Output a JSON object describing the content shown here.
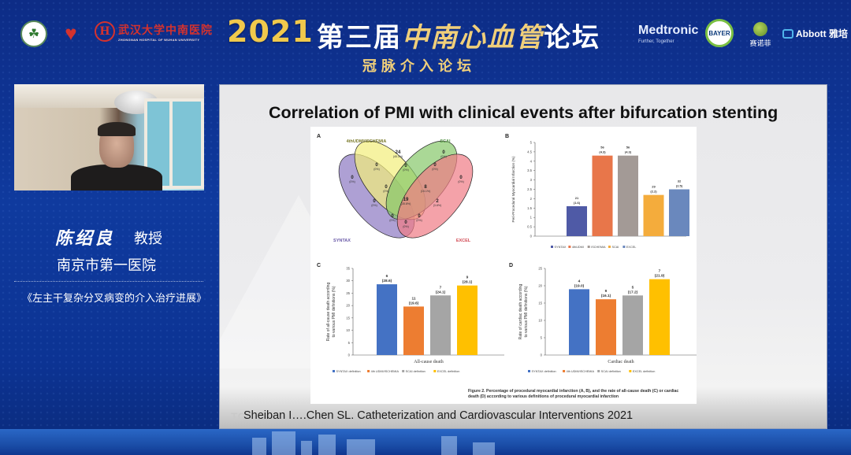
{
  "header": {
    "year": "2021",
    "title_prefix": "第三届",
    "title_calligraphy": "中南心血管",
    "title_suffix": "论坛",
    "subtitle": "冠脉介入论坛",
    "host_logos": [
      {
        "name": "wuhan-university-logo",
        "glyph": "☘"
      },
      {
        "name": "heart-center-logo",
        "glyph": "♥"
      },
      {
        "name": "zhongnan-hospital-logo",
        "glyph": "H",
        "text": "武汉大学中南医院",
        "subtext": "ZHONGNAN HOSPITAL OF WUHAN UNIVERSITY"
      }
    ],
    "sponsors": {
      "medtronic": "Medtronic",
      "medtronic_tagline": "Further, Together",
      "bayer": "BAYER",
      "sanofi": "赛诺菲",
      "abbott": "Abbott 雅培"
    }
  },
  "speaker": {
    "name": "陈绍良",
    "title": "教授",
    "hospital": "南京市第一医院",
    "talk_title": "《左主干复杂分叉病变的介入治疗进展》"
  },
  "slide": {
    "title": "Correlation of PMI with clinical events after bifurcation stenting",
    "citation": "Sheiban I….Chen SL. Catheterization and Cardiovascular Interventions 2021",
    "watermark": "TC",
    "caption": "Figure 2. Percentage of procedural myocardial infarction (A, B), and the rate of all-cause death (C) or cardiac death (D) according to various definitions of procedural myocardial infarction"
  },
  "chart_data": [
    {
      "panel": "A",
      "type": "venn",
      "sets": [
        {
          "name": "4thUDMI/ISCHEMIA",
          "color": "#f2ee7a"
        },
        {
          "name": "SCAI",
          "color": "#86c76a"
        },
        {
          "name": "SYNTAX",
          "color": "#8b78c2"
        },
        {
          "name": "EXCEL",
          "color": "#ef7b84"
        }
      ],
      "regions": [
        {
          "sets": [
            "4thUDMI/ISCHEMIA"
          ],
          "count": "24",
          "pct": "(45.3%)"
        },
        {
          "sets": [
            "SCAI"
          ],
          "count": "0",
          "pct": "(0%)"
        },
        {
          "sets": [
            "SYNTAX"
          ],
          "count": "0",
          "pct": "(0%)"
        },
        {
          "sets": [
            "EXCEL"
          ],
          "count": "0",
          "pct": "(0%)"
        },
        {
          "sets": [
            "SYNTAX",
            "4thUDMI/ISCHEMIA"
          ],
          "count": "0",
          "pct": "(0%)"
        },
        {
          "sets": [
            "4thUDMI/ISCHEMIA",
            "SCAI"
          ],
          "count": "0",
          "pct": "(0%)"
        },
        {
          "sets": [
            "SCAI",
            "EXCEL"
          ],
          "count": "0",
          "pct": "(0%)"
        },
        {
          "sets": [
            "SYNTAX",
            "4thUDMI/ISCHEMIA",
            "SCAI"
          ],
          "count": "0",
          "pct": "(0%)"
        },
        {
          "sets": [
            "4thUDMI/ISCHEMIA",
            "SCAI",
            "EXCEL"
          ],
          "count": "8",
          "pct": "(15.1%)"
        },
        {
          "sets": [
            "SYNTAX",
            "SCAI"
          ],
          "count": "0",
          "pct": "(0%)"
        },
        {
          "sets": [
            "4thUDMI/ISCHEMIA",
            "EXCEL"
          ],
          "count": "2",
          "pct": "(3.8%)"
        },
        {
          "sets": [
            "SYNTAX",
            "4thUDMI/ISCHEMIA",
            "SCAI",
            "EXCEL"
          ],
          "count": "19",
          "pct": "(35.8%)"
        },
        {
          "sets": [
            "SYNTAX",
            "SCAI",
            "EXCEL"
          ],
          "count": "0",
          "pct": "(0%)"
        },
        {
          "sets": [
            "SYNTAX",
            "4thUDMI/ISCHEMIA",
            "EXCEL"
          ],
          "count": "0",
          "pct": "(0%)"
        },
        {
          "sets": [
            "SYNTAX",
            "EXCEL"
          ],
          "count": "0",
          "pct": "(0%)"
        }
      ]
    },
    {
      "panel": "B",
      "type": "bar",
      "title": "",
      "ylabel": "Peri-Procedural Myocardial Infarction (%)",
      "ylim": [
        0,
        5
      ],
      "yticks": [
        "0",
        "0.5",
        "1",
        "1.5",
        "2",
        "2.5",
        "3",
        "3.5",
        "4",
        "4.5",
        "5"
      ],
      "categories": [
        "SYNTAX",
        "4thUDMI",
        "ISCHEMIA",
        "SCAI",
        "EXCEL"
      ],
      "values": [
        1.6,
        4.3,
        4.3,
        2.2,
        2.5
      ],
      "labels_n": [
        "21",
        "56",
        "56",
        "29",
        "32"
      ],
      "labels_pct": [
        "(1.6)",
        "(4.3)",
        "(4.3)",
        "(2.2)",
        "(2.5)"
      ],
      "colors": [
        "#4f5aa6",
        "#e8764a",
        "#a39a96",
        "#f4ac3c",
        "#6a88bd"
      ],
      "legend": [
        "SYNTAX",
        "4thUDMI",
        "ISCHEMIA",
        "SCAI",
        "EXCEL"
      ]
    },
    {
      "panel": "C",
      "type": "bar",
      "xlabel": "All-cause death",
      "ylabel": "Rate of all-cause death according to various PMI definitions (%)",
      "ylim": [
        0,
        35
      ],
      "yticks": [
        "0",
        "5",
        "10",
        "15",
        "20",
        "25",
        "30",
        "35"
      ],
      "categories": [
        "SYNTAX definition",
        "4th UDMI/ISCHEMIA",
        "SCAI definition",
        "EXCEL definition"
      ],
      "values": [
        28.6,
        19.6,
        24.1,
        28.1
      ],
      "labels_n": [
        "6",
        "11",
        "7",
        "9"
      ],
      "labels_pct": [
        "(28.6)",
        "(19.6)",
        "(24.1)",
        "(28.1)"
      ],
      "colors": [
        "#4472c4",
        "#ed7d31",
        "#a5a5a5",
        "#ffc000"
      ],
      "legend": [
        "SYNTAX definition",
        "4th UDMI/ISCHEMIA",
        "SCAI definition",
        "EXCEL definition"
      ]
    },
    {
      "panel": "D",
      "type": "bar",
      "xlabel": "Cardiac death",
      "ylabel": "Rate of cardiac death according to various PMI definitions (%)",
      "ylim": [
        0,
        25
      ],
      "yticks": [
        "0",
        "5",
        "10",
        "15",
        "20",
        "25"
      ],
      "categories": [
        "SYNTAX definition",
        "4th UDMI/ISCHEMIA",
        "SCAI definition",
        "EXCEL definition"
      ],
      "values": [
        19.0,
        16.1,
        17.2,
        21.9
      ],
      "labels_n": [
        "4",
        "9",
        "5",
        "7"
      ],
      "labels_pct": [
        "(19.0)",
        "(16.1)",
        "(17.2)",
        "(21.9)"
      ],
      "colors": [
        "#4472c4",
        "#ed7d31",
        "#a5a5a5",
        "#ffc000"
      ],
      "legend": [
        "SYNTAX definition",
        "4th UDMI/ISCHEMIA",
        "SCAI definition",
        "EXCEL definition"
      ]
    }
  ]
}
